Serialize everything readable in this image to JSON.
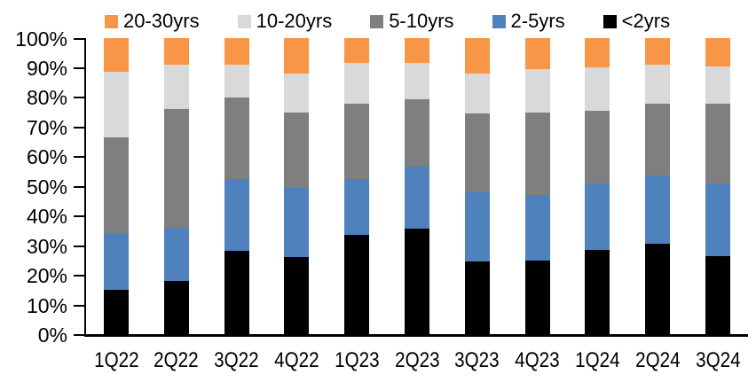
{
  "colors": {
    "background": "#ffffff",
    "axis": "#000000",
    "text": "#000000"
  },
  "chart_data": {
    "type": "bar",
    "subtype": "stacked-100pct",
    "title": "",
    "xlabel": "",
    "ylabel": "",
    "ylim": [
      0,
      100
    ],
    "grid": false,
    "legend_position": "top",
    "legend_order": [
      "20-30yrs",
      "10-20yrs",
      "5-10yrs",
      "2-5yrs",
      "<2yrs"
    ],
    "y_ticks": [
      "100%",
      "90%",
      "80%",
      "70%",
      "60%",
      "50%",
      "40%",
      "30%",
      "20%",
      "10%",
      "0%"
    ],
    "categories": [
      "1Q22",
      "2Q22",
      "3Q22",
      "4Q22",
      "1Q23",
      "2Q23",
      "3Q23",
      "4Q23",
      "1Q24",
      "2Q24",
      "3Q24"
    ],
    "series": [
      {
        "name": "<2yrs",
        "color": "#000000",
        "values": [
          15,
          18,
          28,
          26,
          33.5,
          35.5,
          24.5,
          25,
          28.5,
          30.5,
          26.5
        ]
      },
      {
        "name": "2-5yrs",
        "color": "#4F81BD",
        "values": [
          19,
          18,
          24.5,
          23.5,
          19,
          21,
          23.5,
          22,
          22.5,
          23,
          24.5
        ]
      },
      {
        "name": "5-10yrs",
        "color": "#7F7F7F",
        "values": [
          32.5,
          40,
          27.5,
          25.5,
          25.5,
          23,
          26.5,
          28,
          24.5,
          24.5,
          27
        ]
      },
      {
        "name": "10-20yrs",
        "color": "#D9D9D9",
        "values": [
          22,
          15,
          11,
          13,
          13.5,
          12,
          13.5,
          14.5,
          14.5,
          13,
          12.5
        ]
      },
      {
        "name": "20-30yrs",
        "color": "#F79646",
        "values": [
          11.5,
          9,
          9,
          12,
          8.5,
          8.5,
          12,
          10.5,
          10,
          9,
          9.5
        ]
      }
    ]
  }
}
